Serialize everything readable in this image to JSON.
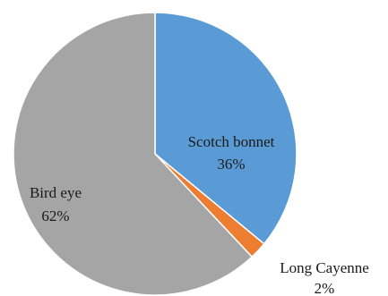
{
  "chart_data": {
    "type": "pie",
    "slices": [
      {
        "name": "Scotch bonnet",
        "value": 36,
        "percent_label": "36%",
        "color": "#5b9bd5"
      },
      {
        "name": "Long Cayenne",
        "value": 2,
        "percent_label": "2%",
        "color": "#ed7d31"
      },
      {
        "name": "Bird eye",
        "value": 62,
        "percent_label": "62%",
        "color": "#a5a5a5"
      }
    ],
    "start_angle": "12 o'clock",
    "direction": "clockwise",
    "slice_border_color": "#ffffff",
    "legend": "none",
    "data_labels": "category name and percentage"
  }
}
